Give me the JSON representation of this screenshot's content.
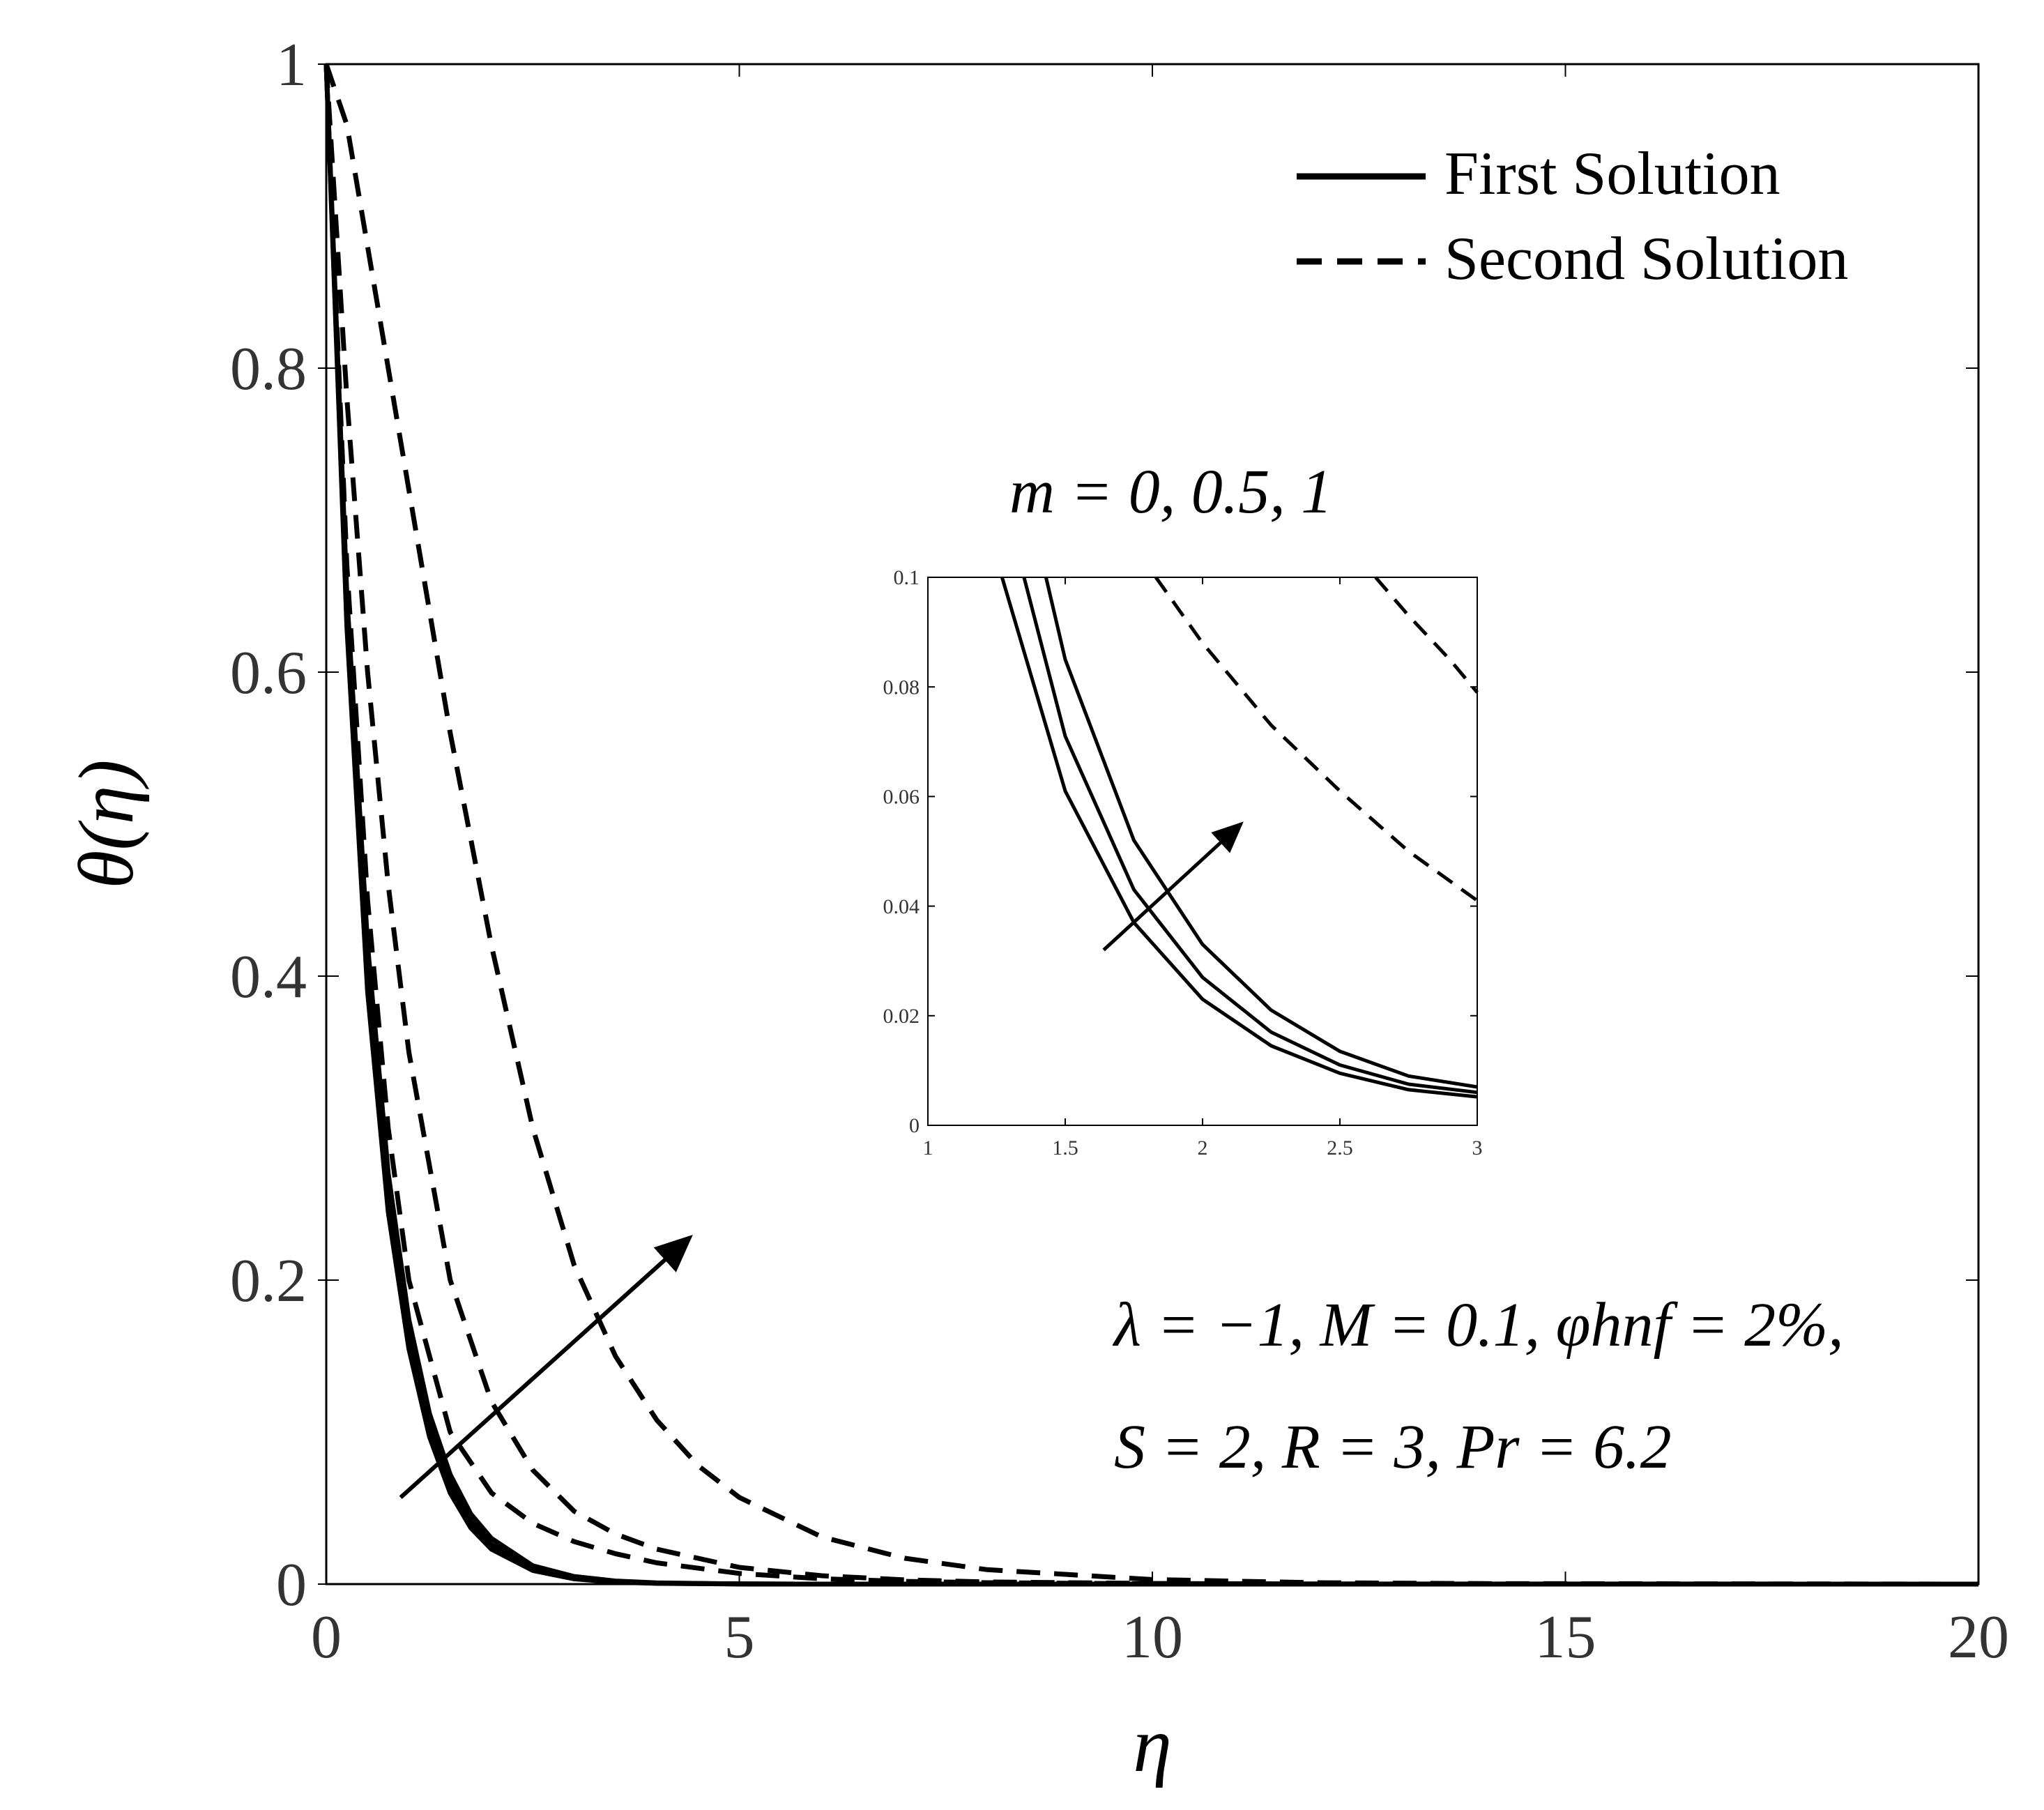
{
  "chart_data": [
    {
      "id": "main",
      "type": "line",
      "title": "",
      "xlabel": "η",
      "ylabel": "θ(η)",
      "xlim": [
        0,
        20
      ],
      "ylim": [
        0,
        1
      ],
      "xticks": [
        0,
        5,
        10,
        15,
        20
      ],
      "xtick_labels": [
        "0",
        "5",
        "10",
        "15",
        "20"
      ],
      "yticks": [
        0,
        0.2,
        0.4,
        0.6,
        0.8,
        1
      ],
      "ytick_labels": [
        "0",
        "0.2",
        "0.4",
        "0.6",
        "0.8",
        "1"
      ],
      "grid": false,
      "legend": {
        "placement": "top-right",
        "entries": [
          {
            "label": "First Solution",
            "style": "solid"
          },
          {
            "label": "Second Solution",
            "style": "dashed"
          }
        ]
      },
      "series": [
        {
          "name": "First Solution, m = 0",
          "style": "solid",
          "x": [
            0,
            0.25,
            0.5,
            0.75,
            1,
            1.25,
            1.5,
            1.75,
            2,
            2.5,
            3,
            3.5,
            4,
            5,
            6,
            8,
            20
          ],
          "y": [
            1,
            0.63,
            0.39,
            0.245,
            0.155,
            0.097,
            0.06,
            0.037,
            0.023,
            0.009,
            0.0035,
            0.0013,
            0.0005,
            0.0001,
            0,
            0,
            0
          ]
        },
        {
          "name": "First Solution, m = 0.5",
          "style": "solid",
          "x": [
            0,
            0.25,
            0.5,
            0.75,
            1,
            1.25,
            1.5,
            1.75,
            2,
            2.5,
            3,
            3.5,
            4,
            5,
            6,
            8,
            20
          ],
          "y": [
            1,
            0.64,
            0.405,
            0.257,
            0.163,
            0.104,
            0.066,
            0.041,
            0.026,
            0.0105,
            0.0042,
            0.0016,
            0.0006,
            0.0001,
            0,
            0,
            0
          ]
        },
        {
          "name": "First Solution, m = 1",
          "style": "solid",
          "x": [
            0,
            0.25,
            0.5,
            0.75,
            1,
            1.25,
            1.5,
            1.75,
            2,
            2.5,
            3,
            3.5,
            4,
            5,
            6,
            8,
            20
          ],
          "y": [
            1,
            0.65,
            0.42,
            0.27,
            0.174,
            0.112,
            0.072,
            0.046,
            0.03,
            0.012,
            0.005,
            0.002,
            0.0008,
            0.0001,
            0,
            0,
            0
          ]
        },
        {
          "name": "Second Solution, m = 0",
          "style": "dashed",
          "x": [
            0,
            0.25,
            0.5,
            0.75,
            1,
            1.5,
            2,
            2.5,
            3,
            3.5,
            4,
            5,
            6,
            7,
            8,
            10,
            12,
            20
          ],
          "y": [
            1,
            0.67,
            0.45,
            0.3,
            0.2,
            0.1,
            0.06,
            0.04,
            0.028,
            0.02,
            0.014,
            0.007,
            0.0035,
            0.0018,
            0.0009,
            0.0002,
            0,
            0
          ]
        },
        {
          "name": "Second Solution, m = 0.5",
          "style": "dashed",
          "x": [
            0,
            0.25,
            0.5,
            0.75,
            1,
            1.5,
            2,
            2.5,
            3,
            3.5,
            4,
            5,
            6,
            7,
            8,
            10,
            12,
            20
          ],
          "y": [
            1,
            0.78,
            0.6,
            0.46,
            0.35,
            0.2,
            0.12,
            0.075,
            0.048,
            0.033,
            0.023,
            0.011,
            0.0055,
            0.0028,
            0.0014,
            0.0004,
            0.0001,
            0
          ]
        },
        {
          "name": "Second Solution, m = 1",
          "style": "dashed",
          "x": [
            0,
            0.25,
            0.5,
            1,
            1.5,
            2,
            2.5,
            3,
            3.5,
            4,
            4.5,
            5,
            6,
            7,
            8,
            10,
            12,
            14,
            20
          ],
          "y": [
            1,
            0.96,
            0.88,
            0.72,
            0.56,
            0.42,
            0.3,
            0.21,
            0.15,
            0.108,
            0.078,
            0.057,
            0.031,
            0.017,
            0.0095,
            0.003,
            0.0009,
            0.0003,
            0
          ]
        }
      ],
      "annotations": {
        "param_line1": "λ = −1, M = 0.1, φhnf = 2%,",
        "param_line2": "S = 2, R = 3, Pr = 6.2",
        "m_label": "m = 0, 0.5, 1",
        "arrow": {
          "from": [
            0.9,
            0.057
          ],
          "to": [
            4.4,
            0.228
          ],
          "meaning": "increasing m"
        }
      }
    },
    {
      "id": "inset",
      "type": "line",
      "title": "",
      "xlabel": "",
      "ylabel": "",
      "xlim": [
        1,
        3
      ],
      "ylim": [
        0,
        0.1
      ],
      "xticks": [
        1,
        1.5,
        2,
        2.5,
        3
      ],
      "xtick_labels": [
        "1",
        "1.5",
        "2",
        "2.5",
        "3"
      ],
      "yticks": [
        0,
        0.02,
        0.04,
        0.06,
        0.08,
        0.1
      ],
      "ytick_labels": [
        "0",
        "0.02",
        "0.04",
        "0.06",
        "0.08",
        "0.1"
      ],
      "grid": false,
      "series": [
        {
          "name": "First Solution, m = 0",
          "style": "solid",
          "x": [
            1.27,
            1.5,
            1.75,
            2,
            2.25,
            2.5,
            2.75,
            3
          ],
          "y": [
            0.1,
            0.061,
            0.037,
            0.023,
            0.0145,
            0.0095,
            0.0065,
            0.0052
          ]
        },
        {
          "name": "First Solution, m = 0.5",
          "style": "solid",
          "x": [
            1.35,
            1.5,
            1.75,
            2,
            2.25,
            2.5,
            2.75,
            3
          ],
          "y": [
            0.1,
            0.071,
            0.043,
            0.027,
            0.017,
            0.011,
            0.0075,
            0.006
          ]
        },
        {
          "name": "First Solution, m = 1",
          "style": "solid",
          "x": [
            1.43,
            1.5,
            1.75,
            2,
            2.25,
            2.5,
            2.75,
            3
          ],
          "y": [
            0.1,
            0.085,
            0.052,
            0.033,
            0.021,
            0.0135,
            0.009,
            0.007
          ]
        },
        {
          "name": "Second Solution, m = 0.5",
          "style": "dashed",
          "x": [
            1.83,
            2,
            2.25,
            2.5,
            2.75,
            3
          ],
          "y": [
            0.1,
            0.088,
            0.073,
            0.061,
            0.05,
            0.041
          ]
        },
        {
          "name": "Second Solution, m = 1",
          "style": "dashed",
          "x": [
            2.63,
            2.75,
            2.9,
            3
          ],
          "y": [
            0.1,
            0.093,
            0.085,
            0.079
          ]
        }
      ],
      "annotations": {
        "arrow": {
          "from": [
            1.64,
            0.032
          ],
          "to": [
            2.14,
            0.055
          ],
          "meaning": "increasing m"
        }
      }
    }
  ]
}
